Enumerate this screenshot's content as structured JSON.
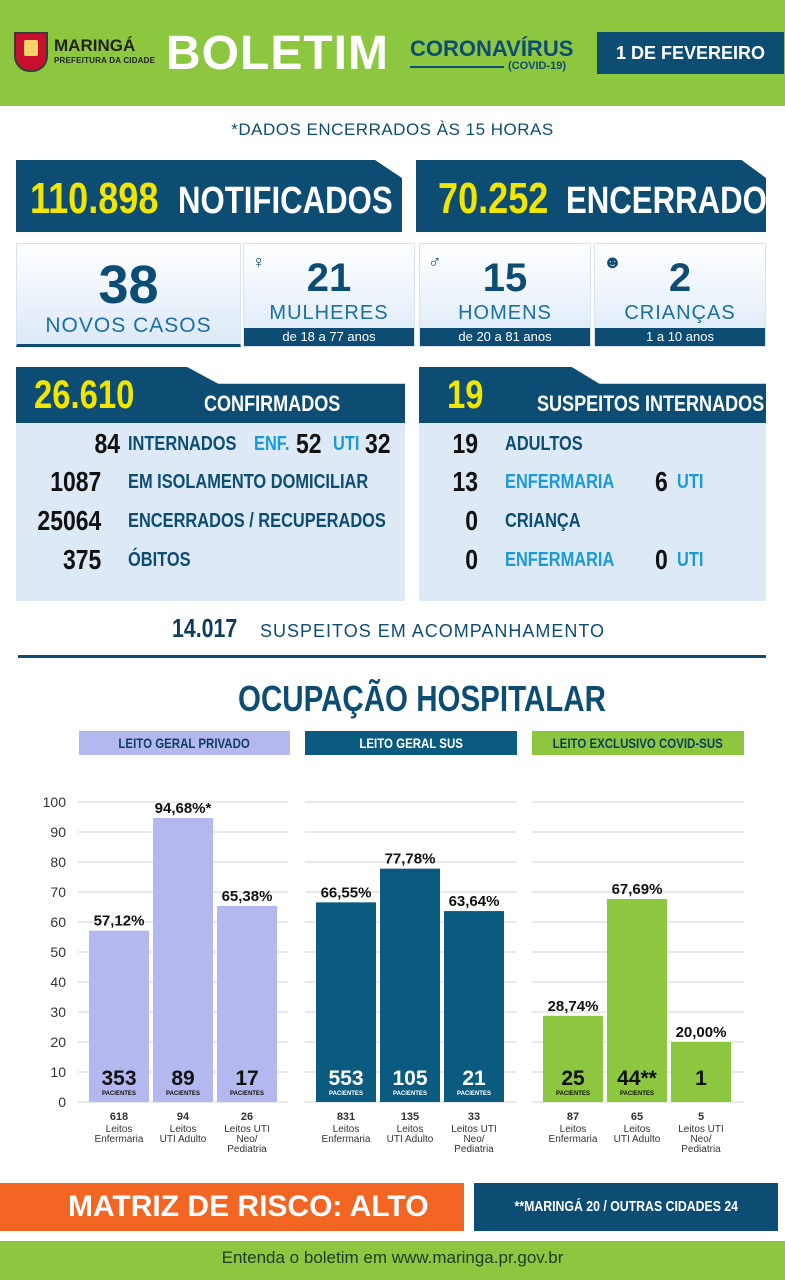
{
  "header": {
    "city": "MARINGÁ",
    "prefeitura": "PREFEITURA DA CIDADE",
    "title": "BOLETIM",
    "corona": "CORONAVÍRUS",
    "covid": "(COVID-19)",
    "date": "1 DE FEVEREIRO"
  },
  "encerrado": "*DADOS ENCERRADOS ÀS 15 HORAS",
  "totals": {
    "notificados_num": "110.898",
    "notificados_lbl": "NOTIFICADOS",
    "encerrados_num": "70.252",
    "encerrados_lbl": "ENCERRADOS"
  },
  "novos": {
    "num": "38",
    "label": "NOVOS CASOS"
  },
  "mulheres": {
    "num": "21",
    "label": "MULHERES",
    "age": "de 18 a 77 anos"
  },
  "homens": {
    "num": "15",
    "label": "HOMENS",
    "age": "de 20 a 81 anos"
  },
  "criancas": {
    "num": "2",
    "label": "CRIANÇAS",
    "age": "1 a 10 anos"
  },
  "confirmados": {
    "num": "26.610",
    "label": "CONFIRMADOS",
    "rows": [
      {
        "value": "84",
        "label": "INTERNADOS",
        "enf_lbl": "ENF.",
        "enf": "52",
        "uti_lbl": "UTI",
        "uti": "32"
      },
      {
        "value": "1087",
        "label": "EM ISOLAMENTO DOMICILIAR"
      },
      {
        "value": "25064",
        "label": "ENCERRADOS / RECUPERADOS"
      },
      {
        "value": "375",
        "label": "ÓBITOS"
      }
    ]
  },
  "internados": {
    "num": "19",
    "label": "SUSPEITOS INTERNADOS",
    "rows": [
      {
        "value": "19",
        "label": "ADULTOS"
      },
      {
        "value": "13",
        "label": "ENFERMARIA",
        "uti": "6",
        "uti_lbl": "UTI"
      },
      {
        "value": "0",
        "label": "CRIANÇA"
      },
      {
        "value": "0",
        "label": "ENFERMARIA",
        "uti": "0",
        "uti_lbl": "UTI"
      }
    ]
  },
  "suspeitos": {
    "num": "14.017",
    "label": "SUSPEITOS EM ACOMPANHAMENTO"
  },
  "ocupacao": {
    "title": "OCUPAÇÃO HOSPITALAR"
  },
  "chart_data": {
    "type": "bar",
    "ylim": [
      0,
      100
    ],
    "yticks": [
      "100",
      "90",
      "80",
      "70",
      "60",
      "50",
      "40",
      "30",
      "20",
      "10",
      "0"
    ],
    "groups": [
      {
        "name": "LEITO GERAL PRIVADO",
        "color": "#b3b9ee",
        "header_bg": "#b3b9ee",
        "header_fg": "#0d3d5c",
        "bars": [
          {
            "value": 57.12,
            "pct": "57,12%",
            "pacientes": "353",
            "leitos": "618",
            "cat": [
              "Leitos",
              "Enfermaria"
            ]
          },
          {
            "value": 94.68,
            "pct": "94,68%*",
            "pacientes": "89",
            "leitos": "94",
            "cat": [
              "Leitos",
              "UTI Adulto"
            ]
          },
          {
            "value": 65.38,
            "pct": "65,38%",
            "pacientes": "17",
            "leitos": "26",
            "cat": [
              "Leitos UTI",
              "Neo/",
              "Pediatria"
            ]
          }
        ]
      },
      {
        "name": "LEITO GERAL SUS",
        "color": "#0b5a80",
        "header_bg": "#0b5a80",
        "header_fg": "#ffffff",
        "bars": [
          {
            "value": 66.55,
            "pct": "66,55%",
            "pacientes": "553",
            "leitos": "831",
            "cat": [
              "Leitos",
              "Enfermaria"
            ]
          },
          {
            "value": 77.78,
            "pct": "77,78%",
            "pacientes": "105",
            "leitos": "135",
            "cat": [
              "Leitos",
              "UTI Adulto"
            ]
          },
          {
            "value": 63.64,
            "pct": "63,64%",
            "pacientes": "21",
            "leitos": "33",
            "cat": [
              "Leitos UTI",
              "Neo/",
              "Pediatria"
            ]
          }
        ]
      },
      {
        "name": "LEITO EXCLUSIVO COVID-SUS",
        "color": "#8dc63f",
        "header_bg": "#8dc63f",
        "header_fg": "#0d3d5c",
        "bars": [
          {
            "value": 28.74,
            "pct": "28,74%",
            "pacientes": "25",
            "leitos": "87",
            "cat": [
              "Leitos",
              "Enfermaria"
            ]
          },
          {
            "value": 67.69,
            "pct": "67,69%",
            "pacientes": "44**",
            "leitos": "65",
            "cat": [
              "Leitos",
              "UTI Adulto"
            ]
          },
          {
            "value": 20.0,
            "pct": "20,00%",
            "pacientes": "1",
            "leitos": "5",
            "cat": [
              "Leitos UTI",
              "Neo/",
              "Pediatria"
            ]
          }
        ]
      }
    ],
    "pacientes_label": "PACIENTES"
  },
  "bottom": {
    "risco": "MATRIZ DE RISCO: ALTO",
    "cidades": "**MARINGÁ 20 / OUTRAS CIDADES 24"
  },
  "footer": "Entenda o boletim em www.maringa.pr.gov.br"
}
